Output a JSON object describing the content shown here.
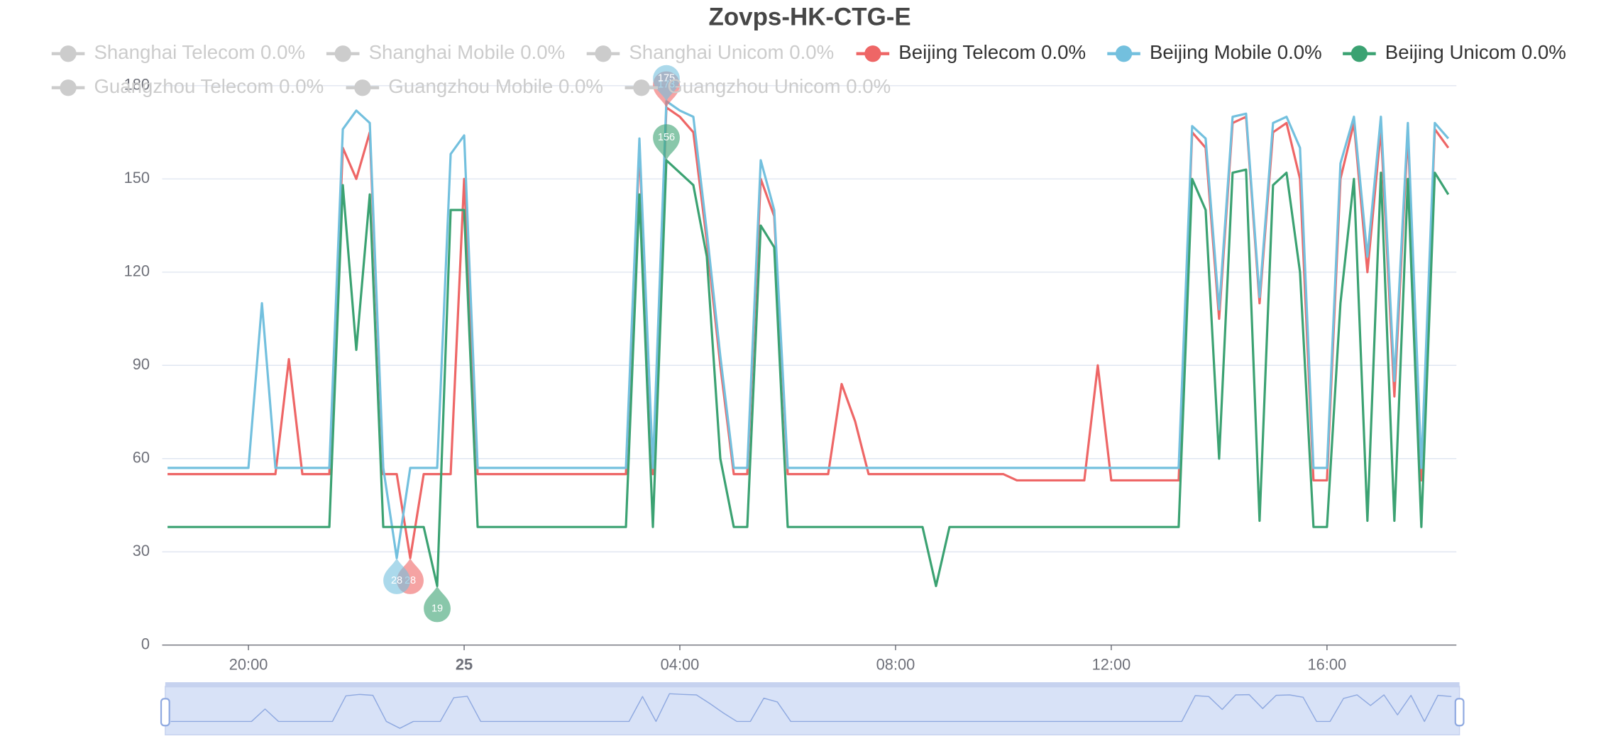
{
  "chart_data": {
    "type": "line",
    "title": "Zovps-HK-CTG-E",
    "x": [
      "18:30",
      "18:45",
      "19:00",
      "19:15",
      "19:30",
      "19:45",
      "20:00",
      "20:15",
      "20:30",
      "20:45",
      "21:00",
      "21:15",
      "21:30",
      "21:45",
      "22:00",
      "22:15",
      "22:30",
      "22:45",
      "23:00",
      "23:15",
      "23:30",
      "23:45",
      "00:00",
      "00:15",
      "00:30",
      "00:45",
      "01:00",
      "01:15",
      "01:30",
      "01:45",
      "02:00",
      "02:15",
      "02:30",
      "02:45",
      "03:00",
      "03:15",
      "03:30",
      "03:45",
      "04:00",
      "04:15",
      "04:30",
      "04:45",
      "05:00",
      "05:15",
      "05:30",
      "05:45",
      "06:00",
      "06:15",
      "06:30",
      "06:45",
      "07:00",
      "07:15",
      "07:30",
      "07:45",
      "08:00",
      "08:15",
      "08:30",
      "08:45",
      "09:00",
      "09:15",
      "09:30",
      "09:45",
      "10:00",
      "10:15",
      "10:30",
      "10:45",
      "11:00",
      "11:15",
      "11:30",
      "11:45",
      "12:00",
      "12:15",
      "12:30",
      "12:45",
      "13:00",
      "13:15",
      "13:30",
      "13:45",
      "14:00",
      "14:15",
      "14:30",
      "14:45",
      "15:00",
      "15:15",
      "15:30",
      "15:45",
      "16:00",
      "16:15",
      "16:30",
      "16:45",
      "17:00",
      "17:15",
      "17:30",
      "17:45",
      "18:00",
      "18:15"
    ],
    "series": [
      {
        "name": "Beijing Telecom 0.0%",
        "color": "#ee6666",
        "values": [
          55,
          55,
          55,
          55,
          55,
          55,
          55,
          55,
          55,
          92,
          55,
          55,
          55,
          160,
          150,
          165,
          55,
          55,
          28,
          55,
          55,
          55,
          150,
          55,
          55,
          55,
          55,
          55,
          55,
          55,
          55,
          55,
          55,
          55,
          55,
          160,
          55,
          173,
          170,
          165,
          130,
          90,
          55,
          55,
          150,
          138,
          55,
          55,
          55,
          55,
          84,
          72,
          55,
          55,
          55,
          55,
          55,
          55,
          55,
          55,
          55,
          55,
          55,
          53,
          53,
          53,
          53,
          53,
          53,
          90,
          53,
          53,
          53,
          53,
          53,
          53,
          165,
          160,
          105,
          168,
          170,
          110,
          165,
          168,
          150,
          53,
          53,
          150,
          168,
          120,
          166,
          80,
          165,
          53,
          166,
          160
        ]
      },
      {
        "name": "Beijing Mobile 0.0%",
        "color": "#73c0de",
        "values": [
          57,
          57,
          57,
          57,
          57,
          57,
          57,
          110,
          57,
          57,
          57,
          57,
          57,
          166,
          172,
          168,
          57,
          28,
          57,
          57,
          57,
          158,
          164,
          57,
          57,
          57,
          57,
          57,
          57,
          57,
          57,
          57,
          57,
          57,
          57,
          163,
          57,
          175,
          172,
          170,
          133,
          93,
          57,
          57,
          156,
          140,
          57,
          57,
          57,
          57,
          57,
          57,
          57,
          57,
          57,
          57,
          57,
          57,
          57,
          57,
          57,
          57,
          57,
          57,
          57,
          57,
          57,
          57,
          57,
          57,
          57,
          57,
          57,
          57,
          57,
          57,
          167,
          163,
          108,
          170,
          171,
          112,
          168,
          170,
          160,
          57,
          57,
          155,
          170,
          125,
          170,
          85,
          168,
          57,
          168,
          163
        ]
      },
      {
        "name": "Beijing Unicom 0.0%",
        "color": "#3ba272",
        "values": [
          38,
          38,
          38,
          38,
          38,
          38,
          38,
          38,
          38,
          38,
          38,
          38,
          38,
          148,
          95,
          145,
          38,
          38,
          38,
          38,
          19,
          140,
          140,
          38,
          38,
          38,
          38,
          38,
          38,
          38,
          38,
          38,
          38,
          38,
          38,
          145,
          38,
          156,
          152,
          148,
          125,
          60,
          38,
          38,
          135,
          128,
          38,
          38,
          38,
          38,
          38,
          38,
          38,
          38,
          38,
          38,
          38,
          19,
          38,
          38,
          38,
          38,
          38,
          38,
          38,
          38,
          38,
          38,
          38,
          38,
          38,
          38,
          38,
          38,
          38,
          38,
          150,
          140,
          60,
          152,
          153,
          40,
          148,
          152,
          120,
          38,
          38,
          110,
          150,
          40,
          152,
          40,
          150,
          38,
          152,
          145
        ]
      }
    ],
    "hidden_series": [
      {
        "name": "Shanghai Telecom 0.0%"
      },
      {
        "name": "Shanghai Mobile 0.0%"
      },
      {
        "name": "Shanghai Unicom 0.0%"
      },
      {
        "name": "Guangzhou Telecom 0.0%"
      },
      {
        "name": "Guangzhou Mobile 0.0%"
      },
      {
        "name": "Guangzhou Unicom 0.0%"
      }
    ],
    "hidden_color": "#cccccc",
    "xlim": [
      "18:24",
      "18:24"
    ],
    "xticks": [
      "20:00",
      {
        "value": "00:00",
        "label": "25"
      },
      "04:00",
      "08:00",
      "12:00",
      "16:00"
    ],
    "ylim": [
      0,
      180
    ],
    "yticks": [
      0,
      30,
      60,
      90,
      120,
      150,
      180
    ],
    "grid": true
  }
}
